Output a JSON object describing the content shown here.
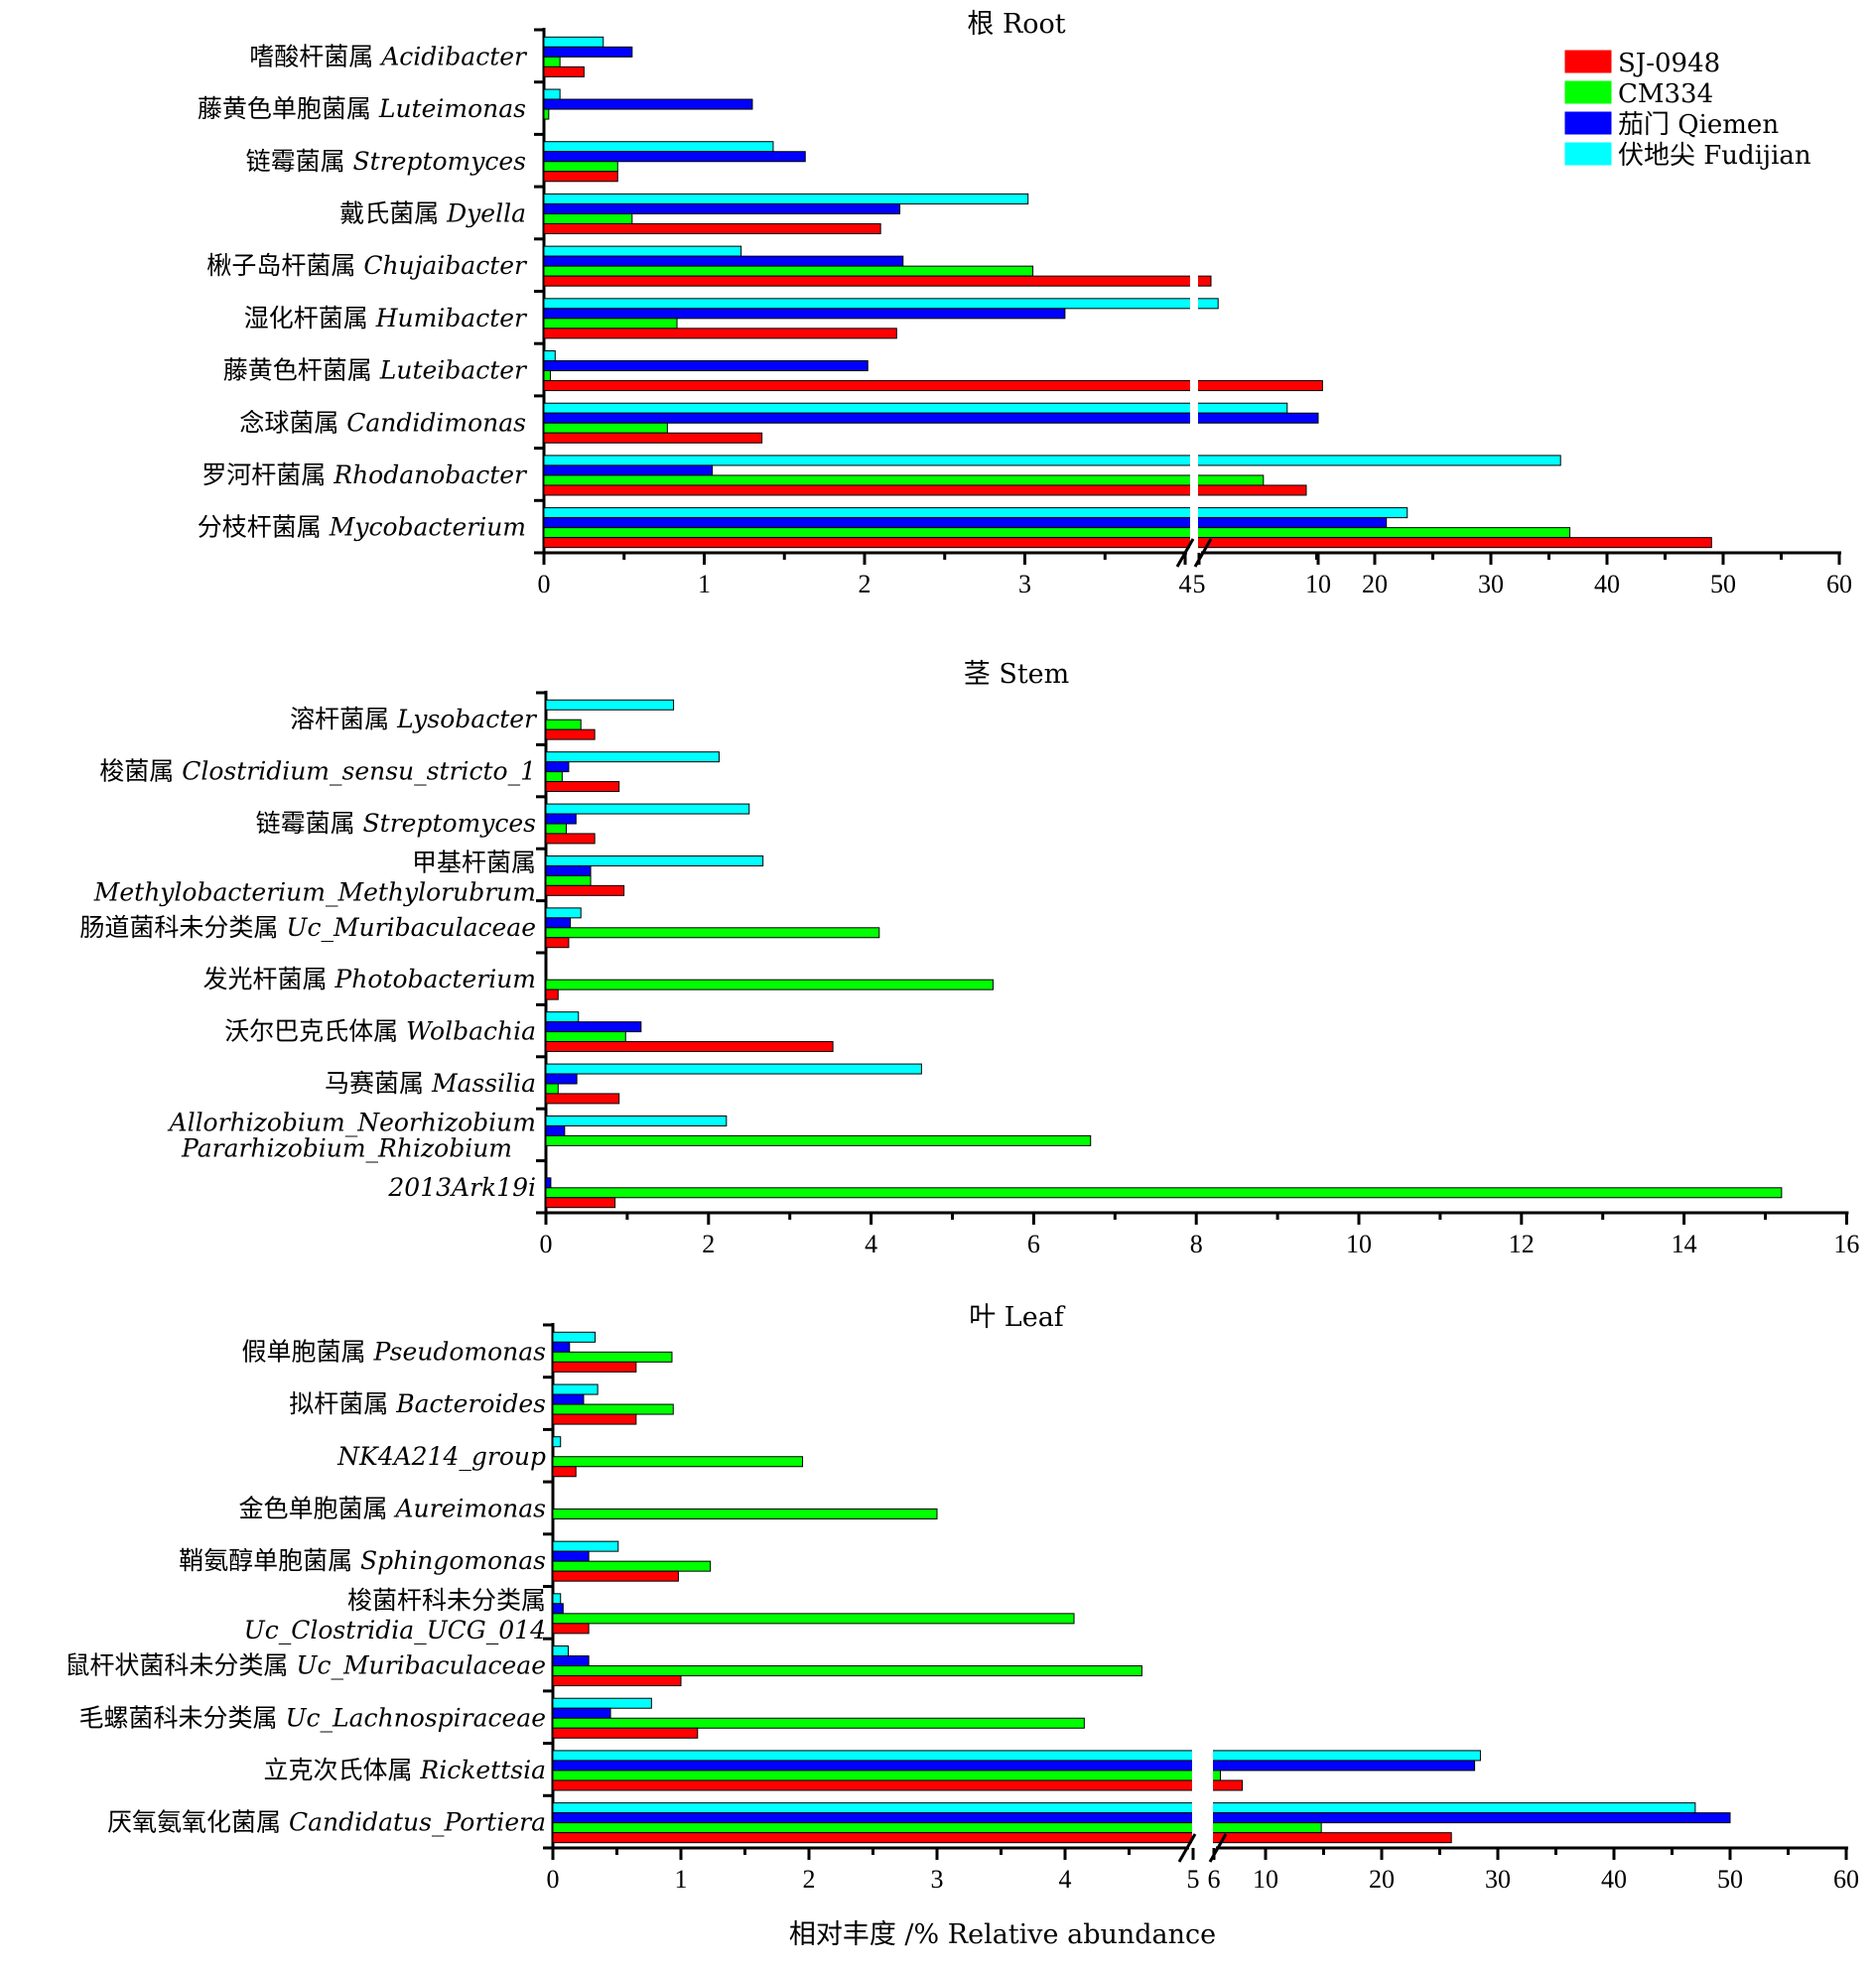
{
  "chart_data": [
    {
      "type": "bar",
      "orientation": "horizontal",
      "title": "根 Root",
      "legend": [
        {
          "name": "SJ-0948",
          "color": "#ff0000"
        },
        {
          "name": "CM334",
          "color": "#00ff00"
        },
        {
          "name": "茄门 Qiemen",
          "color": "#0000ff"
        },
        {
          "name": "伏地尖 Fudijian",
          "color": "#00ffff"
        }
      ],
      "legend_position": "top-right",
      "axis_break": {
        "left_range": [
          0,
          4
        ],
        "right_range": [
          5,
          60
        ]
      },
      "x_ticks": [
        "0",
        "1",
        "2",
        "3",
        "4",
        "5",
        "10",
        "20",
        "30",
        "40",
        "50",
        "60"
      ],
      "categories": [
        {
          "zh": "嗜酸杆菌属",
          "latin": "Acidibacter",
          "values": [
            0.25,
            0.1,
            0.55,
            0.37
          ]
        },
        {
          "zh": "藤黄色单胞菌属",
          "latin": "Luteimonas",
          "values": [
            0.0,
            0.03,
            1.3,
            0.1
          ]
        },
        {
          "zh": "链霉菌属",
          "latin": "Streptomyces",
          "values": [
            0.46,
            0.46,
            1.63,
            1.43
          ]
        },
        {
          "zh": "戴氏菌属",
          "latin": "Dyella",
          "values": [
            2.1,
            0.55,
            2.22,
            3.02
          ]
        },
        {
          "zh": "楸子岛杆菌属",
          "latin": "Chujaibacter",
          "values": [
            5.5,
            3.05,
            2.24,
            1.23
          ]
        },
        {
          "zh": "湿化杆菌属",
          "latin": "Humibacter",
          "values": [
            2.2,
            0.83,
            3.25,
            5.8
          ]
        },
        {
          "zh": "藤黄色杆菌属",
          "latin": "Luteibacter",
          "values": [
            15.5,
            0.04,
            2.02,
            0.07
          ]
        },
        {
          "zh": "念球菌属",
          "latin": "Candidimonas",
          "values": [
            1.36,
            0.77,
            10.0,
            8.7
          ]
        },
        {
          "zh": "罗河杆菌属",
          "latin": "Rhodanobacter",
          "values": [
            9.5,
            7.7,
            1.05,
            36.0
          ]
        },
        {
          "zh": "分枝杆菌属",
          "latin": "Mycobacterium",
          "values": [
            49.0,
            36.8,
            21.0,
            22.8
          ]
        }
      ]
    },
    {
      "type": "bar",
      "orientation": "horizontal",
      "title": "茎 Stem",
      "x_ticks": [
        "0",
        "2",
        "4",
        "6",
        "8",
        "10",
        "12",
        "14",
        "16"
      ],
      "xlim": [
        0,
        16
      ],
      "categories": [
        {
          "zh": "溶杆菌属",
          "latin": "Lysobacter",
          "values": [
            0.6,
            0.43,
            0.0,
            1.57
          ]
        },
        {
          "zh": "梭菌属",
          "latin": "Clostridium_sensu_stricto_1",
          "values": [
            0.9,
            0.2,
            0.28,
            2.13
          ]
        },
        {
          "zh": "链霉菌属",
          "latin": "Streptomyces",
          "values": [
            0.6,
            0.25,
            0.37,
            2.5
          ]
        },
        {
          "zh": "甲基杆菌属",
          "latin": "Methylobacterium_Methylorubrum",
          "values": [
            0.96,
            0.55,
            0.55,
            2.67
          ]
        },
        {
          "zh": "肠道菌科未分类属",
          "latin": "Uc_Muribaculaceae",
          "values": [
            0.28,
            4.1,
            0.3,
            0.43
          ]
        },
        {
          "zh": "发光杆菌属",
          "latin": "Photobacterium",
          "values": [
            0.15,
            5.5,
            0.0,
            0.0
          ]
        },
        {
          "zh": "沃尔巴克氏体属",
          "latin": "Wolbachia",
          "values": [
            3.53,
            0.98,
            1.17,
            0.4
          ]
        },
        {
          "zh": "马赛菌属",
          "latin": "Massilia",
          "values": [
            0.9,
            0.15,
            0.38,
            4.62
          ]
        },
        {
          "zh": "",
          "latin": "Allorhizobium_Neorhizobium Pararhizobium_Rhizobium",
          "values": [
            0.0,
            6.7,
            0.23,
            2.22
          ]
        },
        {
          "zh": "",
          "latin": "2013Ark19i",
          "values": [
            0.85,
            15.2,
            0.06,
            0.0
          ]
        }
      ]
    },
    {
      "type": "bar",
      "orientation": "horizontal",
      "title": "叶 Leaf",
      "axis_break": {
        "left_range": [
          0,
          5
        ],
        "right_range": [
          6,
          60
        ]
      },
      "x_ticks": [
        "0",
        "1",
        "2",
        "3",
        "4",
        "5",
        "6",
        "10",
        "20",
        "30",
        "40",
        "50",
        "60"
      ],
      "categories": [
        {
          "zh": "假单胞菌属",
          "latin": "Pseudomonas",
          "values": [
            0.65,
            0.93,
            0.13,
            0.33
          ]
        },
        {
          "zh": "拟杆菌属",
          "latin": "Bacteroides",
          "values": [
            0.65,
            0.94,
            0.24,
            0.35
          ]
        },
        {
          "zh": "",
          "latin": "NK4A214_group",
          "values": [
            0.18,
            1.95,
            0.0,
            0.06
          ]
        },
        {
          "zh": "金色单胞菌属",
          "latin": "Aureimonas",
          "values": [
            0.0,
            3.0,
            0.0,
            0.0
          ]
        },
        {
          "zh": "鞘氨醇单胞菌属",
          "latin": "Sphingomonas",
          "values": [
            0.98,
            1.23,
            0.28,
            0.51
          ]
        },
        {
          "zh": "梭菌杆科未分类属",
          "latin": "Uc_Clostridia_UCG_014",
          "values": [
            0.28,
            4.07,
            0.08,
            0.06
          ]
        },
        {
          "zh": "鼠杆状菌科未分类属",
          "latin": "Uc_Muribaculaceae",
          "values": [
            1.0,
            4.6,
            0.28,
            0.12
          ]
        },
        {
          "zh": "毛螺菌科未分类属",
          "latin": "Uc_Lachnospiraceae",
          "values": [
            1.13,
            4.15,
            0.45,
            0.77
          ]
        },
        {
          "zh": "立克次氏体属",
          "latin": "Rickettsia",
          "values": [
            8.2,
            6.5,
            28.0,
            28.5
          ]
        },
        {
          "zh": "厌氧氨氧化菌属",
          "latin": "Candidatus_Portiera",
          "values": [
            26.0,
            14.8,
            50.0,
            47.0
          ]
        }
      ]
    }
  ],
  "x_axis_label": "相对丰度 /%  Relative abundance"
}
